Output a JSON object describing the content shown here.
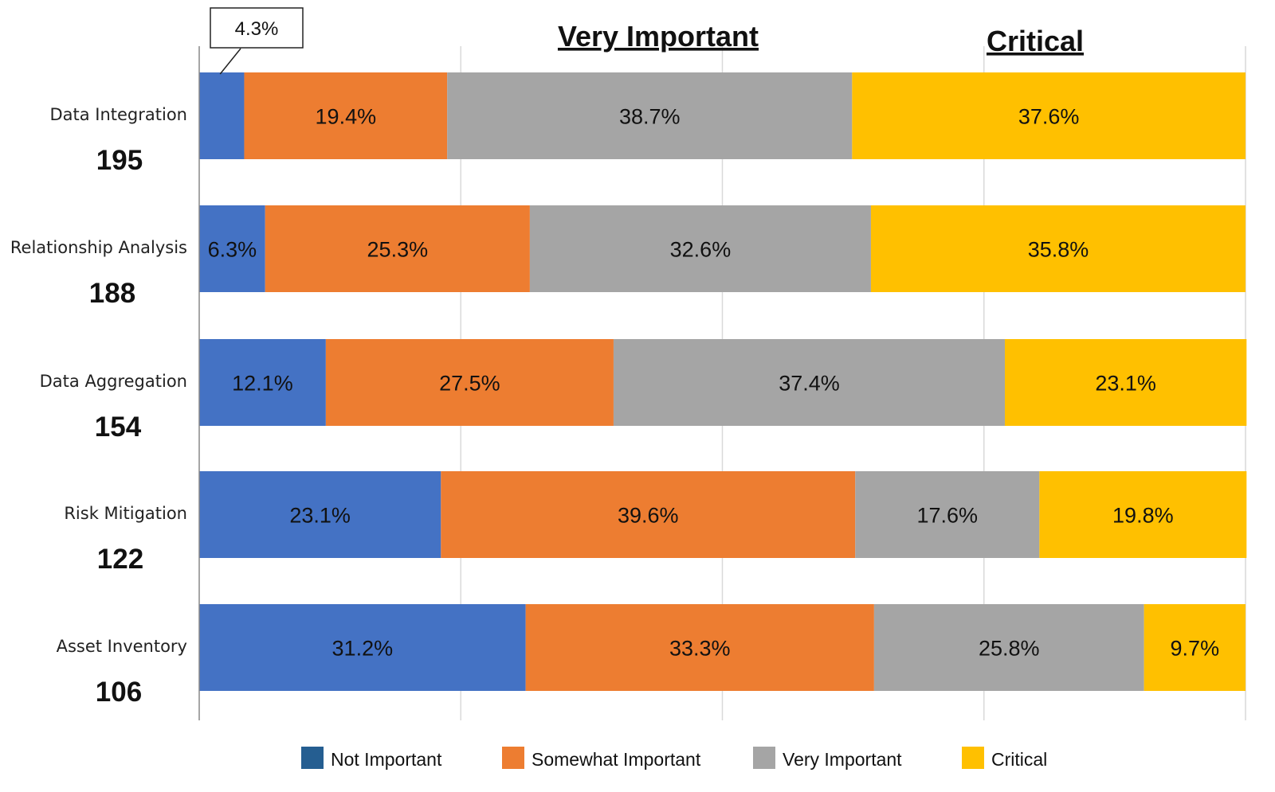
{
  "chart_data": {
    "type": "bar",
    "orientation": "horizontal",
    "stacked": true,
    "percent_stacked": true,
    "grid": true,
    "legend_position": "bottom",
    "xlim": [
      0,
      100
    ],
    "categories": [
      "Data Integration",
      "Relationship Analysis",
      "Data Aggregation",
      "Risk Mitigation",
      "Asset Inventory"
    ],
    "counts": [
      "195",
      "188",
      "154",
      "122",
      "106"
    ],
    "series": [
      {
        "name": "Not Important",
        "color": "#4472C4",
        "legend_color": "#255E91",
        "values": [
          4.3,
          6.3,
          12.1,
          23.1,
          31.2
        ],
        "labels": [
          "4.3%",
          "6.3%",
          "12.1%",
          "23.1%",
          "31.2%"
        ]
      },
      {
        "name": "Somewhat Important",
        "color": "#ED7D31",
        "legend_color": "#ED7D31",
        "values": [
          19.4,
          25.3,
          27.5,
          39.6,
          33.3
        ],
        "labels": [
          "19.4%",
          "25.3%",
          "27.5%",
          "39.6%",
          "33.3%"
        ]
      },
      {
        "name": "Very Important",
        "color": "#A5A5A5",
        "legend_color": "#A5A5A5",
        "values": [
          38.7,
          32.6,
          37.4,
          17.6,
          25.8
        ],
        "labels": [
          "38.7%",
          "32.6%",
          "37.4%",
          "17.6%",
          "25.8%"
        ]
      },
      {
        "name": "Critical",
        "color": "#FFC000",
        "legend_color": "#FFC000",
        "values": [
          37.6,
          35.8,
          23.1,
          19.8,
          9.7
        ],
        "labels": [
          "37.6%",
          "35.8%",
          "23.1%",
          "19.8%",
          "9.7%"
        ]
      }
    ],
    "headers": [
      "Very Important",
      "Critical"
    ]
  }
}
